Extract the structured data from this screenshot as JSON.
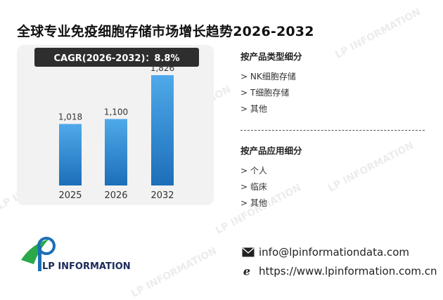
{
  "title": "全球专业免疫细胞存储市场增长趋势2026-2032",
  "cagr_label": "CAGR(2026-2032)：8.8%",
  "chart_data": {
    "type": "bar",
    "categories": [
      "2025",
      "2026",
      "2032"
    ],
    "values": [
      1018,
      1100,
      1826
    ],
    "value_labels": [
      "1,018",
      "1,100",
      "1,826"
    ],
    "title": "",
    "xlabel": "",
    "ylabel": "",
    "ylim": [
      0,
      2000
    ],
    "grid": false,
    "colors": {
      "bar_top": "#4fa9ea",
      "bar_bottom": "#1c6fb8"
    }
  },
  "segments": {
    "by_type": {
      "title": "按产品类型细分",
      "items": [
        "NK细胞存储",
        "T细胞存储",
        "其他"
      ]
    },
    "by_application": {
      "title": "按产品应用细分",
      "items": [
        "个人",
        "临床",
        "其他"
      ]
    }
  },
  "brand": {
    "name": "LP INFORMATION"
  },
  "contact": {
    "email": "info@lpinformationdata.com",
    "website": "https://www.lpinformation.com.cn"
  },
  "icons": [
    "mail-icon",
    "browser-e-icon",
    "lp-logo-icon"
  ]
}
